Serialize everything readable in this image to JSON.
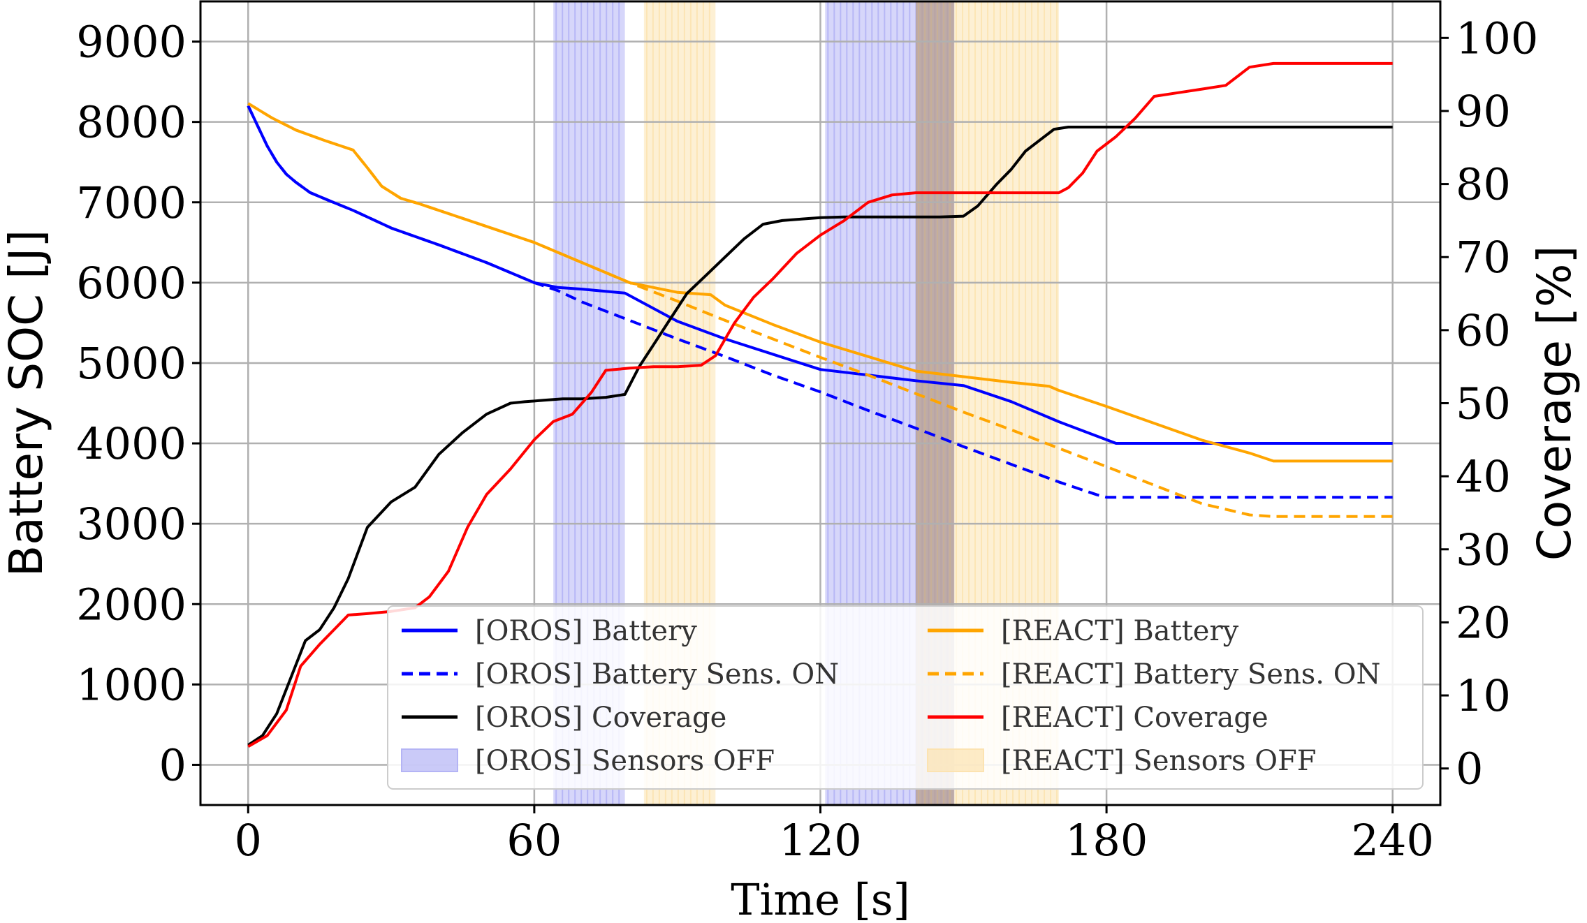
{
  "chart_data": {
    "type": "line",
    "xlabel": "Time [s]",
    "ylabel": "Battery SOC [J]",
    "y2label": "Coverage [%]",
    "xlim": [
      -10,
      250
    ],
    "ylim": [
      -500,
      9500
    ],
    "y2lim": [
      -5.0,
      105.0
    ],
    "xticks": [
      0,
      60,
      120,
      180,
      240
    ],
    "yticks": [
      0,
      1000,
      2000,
      3000,
      4000,
      5000,
      6000,
      7000,
      8000,
      9000
    ],
    "y2ticks": [
      0,
      10,
      20,
      30,
      40,
      50,
      60,
      70,
      80,
      90,
      100
    ],
    "grid": true,
    "legend_position": "lower-right",
    "shaded_regions": [
      {
        "group": "OROS",
        "color": "#b4b4f5",
        "x0": 64,
        "x1": 79
      },
      {
        "group": "REACT",
        "color": "#fce3b1",
        "x0": 83,
        "x1": 98
      },
      {
        "group": "OROS",
        "color": "#b4b4f5",
        "x0": 121,
        "x1": 148
      },
      {
        "group": "REACT",
        "color": "#fce3b1",
        "x0": 140,
        "x1": 170
      }
    ],
    "series": [
      {
        "name": "[OROS] Battery",
        "axis": "left",
        "color": "#0000ff",
        "style": "solid",
        "x": [
          0,
          2,
          4,
          6,
          8,
          10,
          13,
          17,
          22,
          30,
          40,
          50,
          60,
          65,
          70,
          79,
          90,
          100,
          110,
          120,
          130,
          140,
          150,
          160,
          170,
          182,
          190,
          200,
          210,
          220,
          230,
          240
        ],
        "y": [
          8200,
          7950,
          7700,
          7500,
          7350,
          7250,
          7120,
          7020,
          6900,
          6680,
          6470,
          6250,
          6000,
          5940,
          5920,
          5870,
          5520,
          5300,
          5110,
          4920,
          4850,
          4780,
          4720,
          4520,
          4270,
          4000,
          4000,
          4000,
          4000,
          4000,
          4000,
          4000
        ]
      },
      {
        "name": "[OROS] Battery Sens. ON",
        "axis": "left",
        "color": "#0000ff",
        "style": "dashed",
        "x": [
          0,
          2,
          4,
          6,
          8,
          10,
          13,
          17,
          22,
          30,
          40,
          50,
          60,
          65,
          70,
          80,
          90,
          100,
          110,
          120,
          130,
          140,
          150,
          160,
          170,
          178,
          180,
          190,
          200,
          210,
          220,
          230,
          240
        ],
        "y": [
          8200,
          7950,
          7700,
          7500,
          7350,
          7250,
          7120,
          7020,
          6900,
          6680,
          6470,
          6250,
          6000,
          5900,
          5760,
          5530,
          5300,
          5080,
          4850,
          4640,
          4410,
          4190,
          3960,
          3740,
          3520,
          3360,
          3330,
          3330,
          3330,
          3330,
          3330,
          3330,
          3330
        ]
      },
      {
        "name": "[REACT] Battery",
        "axis": "left",
        "color": "#ffa500",
        "style": "solid",
        "x": [
          0,
          5,
          10,
          16,
          22,
          25,
          28,
          32,
          36,
          40,
          50,
          60,
          70,
          80,
          90,
          97,
          100,
          110,
          120,
          130,
          140,
          150,
          160,
          168,
          170,
          180,
          190,
          200,
          210,
          215,
          220,
          230,
          240
        ],
        "y": [
          8230,
          8050,
          7900,
          7770,
          7650,
          7430,
          7200,
          7050,
          6980,
          6900,
          6700,
          6500,
          6250,
          6000,
          5880,
          5850,
          5720,
          5480,
          5260,
          5080,
          4900,
          4830,
          4760,
          4710,
          4660,
          4460,
          4250,
          4040,
          3880,
          3780,
          3780,
          3780,
          3780
        ]
      },
      {
        "name": "[REACT] Battery Sens. ON",
        "axis": "left",
        "color": "#ffa500",
        "style": "dashed",
        "x": [
          0,
          5,
          10,
          16,
          22,
          25,
          28,
          32,
          36,
          40,
          50,
          60,
          70,
          80,
          90,
          100,
          110,
          120,
          130,
          140,
          150,
          160,
          170,
          180,
          190,
          200,
          210,
          215,
          220,
          230,
          240
        ],
        "y": [
          8230,
          8050,
          7900,
          7770,
          7650,
          7430,
          7200,
          7050,
          6980,
          6900,
          6700,
          6500,
          6250,
          6000,
          5770,
          5530,
          5300,
          5070,
          4850,
          4620,
          4390,
          4170,
          3940,
          3710,
          3480,
          3250,
          3110,
          3090,
          3090,
          3090,
          3090
        ]
      },
      {
        "name": "[OROS] Coverage",
        "axis": "right",
        "color": "#000000",
        "style": "solid",
        "x": [
          0,
          3,
          6,
          9,
          12,
          15,
          18,
          21,
          25,
          30,
          35,
          40,
          45,
          50,
          55,
          58,
          62,
          66,
          70,
          75,
          79,
          82,
          85,
          88,
          92,
          96,
          100,
          104,
          108,
          112,
          116,
          120,
          125,
          130,
          135,
          140,
          145,
          150,
          153,
          157,
          160,
          163,
          166,
          169,
          172,
          175,
          180,
          190,
          200,
          220,
          240
        ],
        "y": [
          3.2,
          4.5,
          7.5,
          12.5,
          17.5,
          19.0,
          22.0,
          26.0,
          33.0,
          36.5,
          38.5,
          43.0,
          46.0,
          48.5,
          50.0,
          50.2,
          50.4,
          50.6,
          50.6,
          50.8,
          51.2,
          55.0,
          58.0,
          61.0,
          65.0,
          67.5,
          70.0,
          72.5,
          74.5,
          75.0,
          75.2,
          75.4,
          75.5,
          75.5,
          75.5,
          75.5,
          75.5,
          75.6,
          77.0,
          80.0,
          82.0,
          84.5,
          86.0,
          87.5,
          87.8,
          87.8,
          87.8,
          87.8,
          87.8,
          87.8,
          87.8
        ]
      },
      {
        "name": "[REACT] Coverage",
        "axis": "right",
        "color": "#ff0000",
        "style": "solid",
        "x": [
          0,
          4,
          8,
          11,
          15,
          18,
          21,
          25,
          30,
          35,
          38,
          42,
          46,
          50,
          55,
          60,
          64,
          68,
          72,
          75,
          80,
          85,
          90,
          95,
          98,
          102,
          106,
          110,
          115,
          120,
          125,
          130,
          135,
          140,
          150,
          160,
          170,
          172,
          175,
          178,
          182,
          186,
          190,
          195,
          200,
          205,
          208,
          210,
          215,
          220,
          230,
          240
        ],
        "y": [
          3.0,
          4.5,
          8.0,
          14.0,
          17.0,
          19.0,
          21.0,
          21.2,
          21.5,
          22.0,
          23.5,
          27.0,
          33.0,
          37.5,
          41.0,
          45.0,
          47.5,
          48.5,
          51.5,
          54.5,
          54.8,
          55.0,
          55.0,
          55.2,
          56.5,
          61.0,
          64.5,
          67.0,
          70.5,
          73.0,
          75.0,
          77.5,
          78.5,
          78.8,
          78.8,
          78.8,
          78.8,
          79.5,
          81.5,
          84.5,
          86.5,
          89.0,
          92.0,
          92.5,
          93.0,
          93.5,
          95.0,
          96.0,
          96.5,
          96.5,
          96.5,
          96.5
        ]
      }
    ],
    "legend": [
      {
        "label": "[OROS] Battery",
        "kind": "line",
        "color": "#0000ff",
        "style": "solid"
      },
      {
        "label": "[REACT] Battery",
        "kind": "line",
        "color": "#ffa500",
        "style": "solid"
      },
      {
        "label": "[OROS] Battery Sens. ON",
        "kind": "line",
        "color": "#0000ff",
        "style": "dashed"
      },
      {
        "label": "[REACT] Battery Sens. ON",
        "kind": "line",
        "color": "#ffa500",
        "style": "dashed"
      },
      {
        "label": "[OROS] Coverage",
        "kind": "line",
        "color": "#000000",
        "style": "solid"
      },
      {
        "label": "[REACT] Coverage",
        "kind": "line",
        "color": "#ff0000",
        "style": "solid"
      },
      {
        "label": "[OROS] Sensors OFF",
        "kind": "patch",
        "color": "#b4b4f5",
        "style": "fill"
      },
      {
        "label": "[REACT] Sensors OFF",
        "kind": "patch",
        "color": "#fce3b1",
        "style": "fill"
      }
    ]
  }
}
